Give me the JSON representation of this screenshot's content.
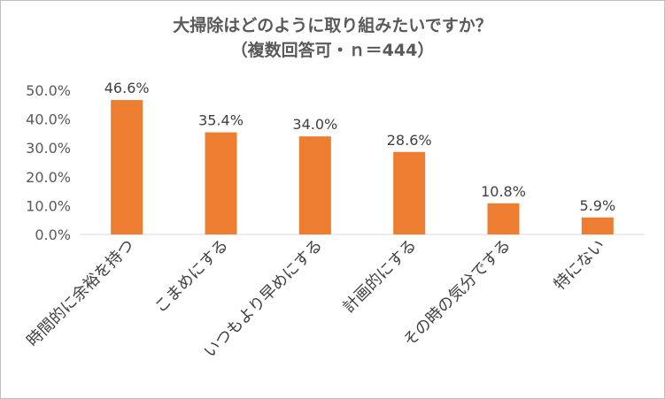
{
  "chart_data": {
    "type": "bar",
    "title": "大掃除はどのように取り組みたいですか？",
    "subtitle": "（複数回答可・ｎ＝444）",
    "xlabel": "",
    "ylabel": "",
    "categories": [
      "時間的に余裕を持つ",
      "こまめにする",
      "いつもより早めにする",
      "計画的にする",
      "その時の気分でする",
      "特にない"
    ],
    "values": [
      46.6,
      35.4,
      34.0,
      28.6,
      10.8,
      5.9
    ],
    "data_labels": [
      "46.6%",
      "35.4%",
      "34.0%",
      "28.6%",
      "10.8%",
      "5.9%"
    ],
    "ylim": [
      0,
      50
    ],
    "yticks": [
      "0.0%",
      "10.0%",
      "20.0%",
      "30.0%",
      "40.0%",
      "50.0%"
    ],
    "bar_color": "#ED7D31",
    "grid": false,
    "legend": "none"
  }
}
